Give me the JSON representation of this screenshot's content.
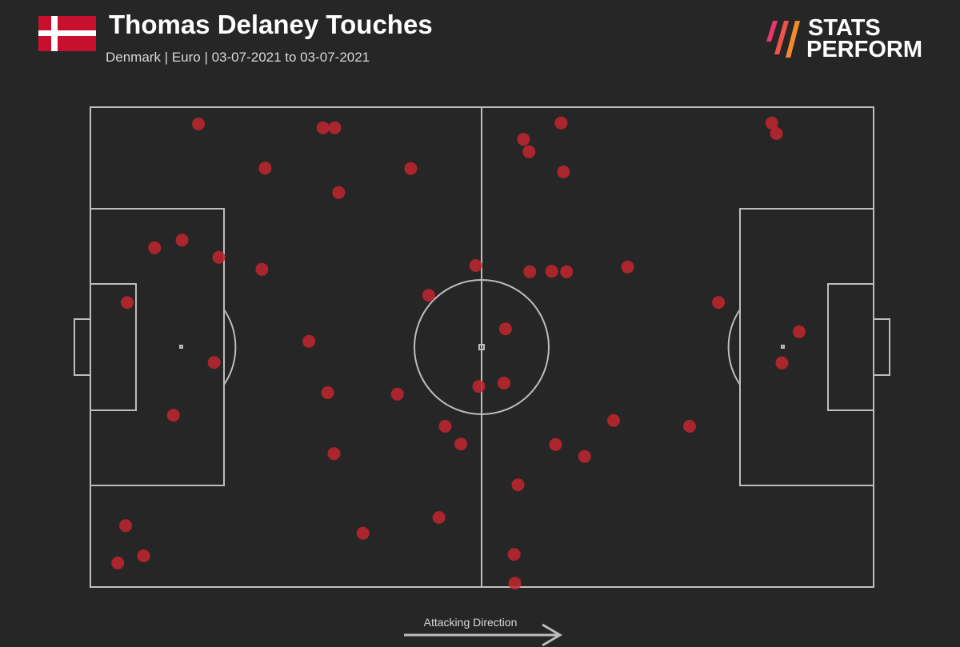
{
  "chart_data": {
    "type": "scatter",
    "title": "Thomas Delaney Touches",
    "subtitle": "Denmark | Euro | 03-07-2021 to 03-07-2021",
    "annotation": "Attacking Direction",
    "color": "#c3262f",
    "xlim": [
      0,
      100
    ],
    "ylim": [
      0,
      100
    ],
    "x": [
      13.8,
      29.7,
      31.2,
      22.3,
      40.9,
      31.7,
      8.2,
      11.7,
      16.4,
      21.9,
      4.7,
      27.9,
      15.8,
      30.3,
      39.2,
      10.6,
      31.1,
      4.5,
      6.8,
      3.5,
      34.8,
      44.5,
      45.3,
      47.3,
      43.2,
      49.2,
      53.0,
      49.6,
      52.8,
      60.1,
      55.3,
      56.0,
      60.4,
      56.1,
      58.9,
      60.8,
      68.6,
      80.2,
      87.0,
      87.6,
      90.5,
      88.3,
      66.8,
      76.5,
      59.4,
      63.1,
      54.6,
      54.1,
      54.2
    ],
    "y": [
      96.5,
      95.7,
      95.7,
      87.3,
      87.2,
      82.2,
      70.7,
      72.3,
      68.7,
      66.2,
      59.3,
      51.2,
      46.8,
      40.5,
      40.2,
      35.8,
      27.8,
      12.8,
      6.5,
      5.0,
      11.2,
      14.5,
      33.5,
      29.8,
      60.8,
      67.0,
      53.8,
      41.8,
      42.5,
      96.7,
      93.3,
      90.7,
      86.5,
      65.7,
      65.8,
      65.7,
      66.7,
      59.3,
      96.7,
      94.5,
      53.2,
      46.7,
      34.7,
      33.5,
      29.7,
      27.2,
      21.3,
      6.8,
      0.8
    ]
  },
  "logo": {
    "line1": "STATS",
    "line2": "PERFORM"
  }
}
